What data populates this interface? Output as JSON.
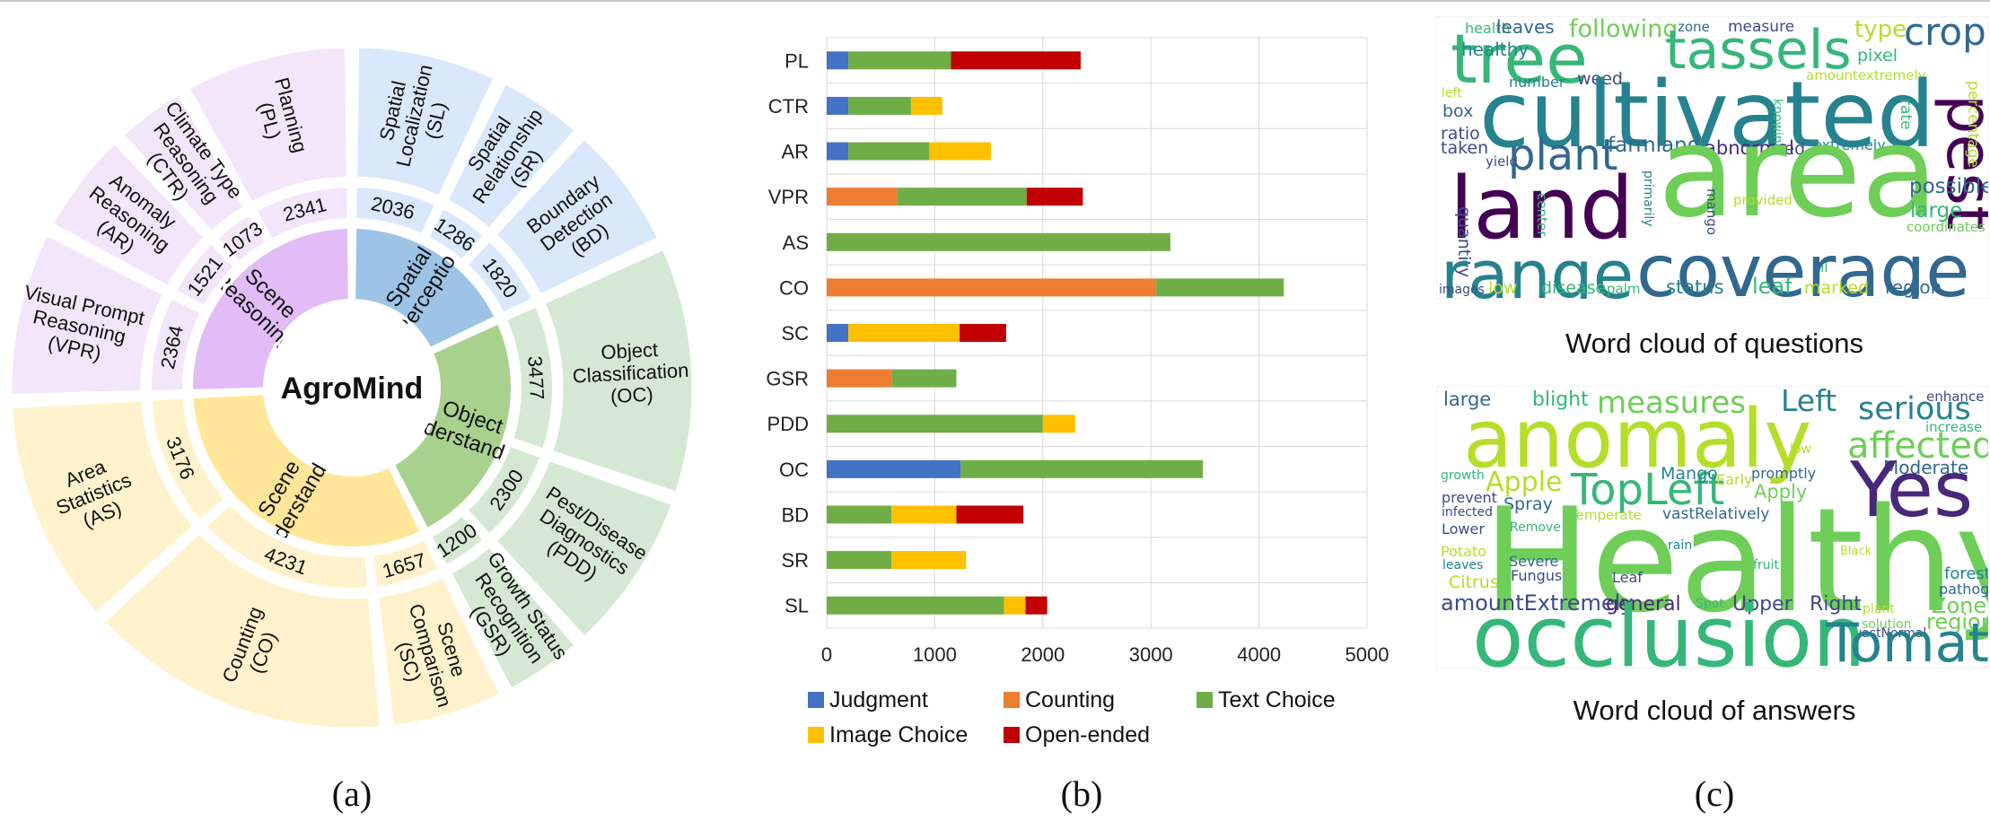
{
  "panel_labels": [
    "(a)",
    "(b)",
    "(c)"
  ],
  "colors": {
    "judgment": "#4472c4",
    "counting": "#ed7d31",
    "text_choice": "#70ad47",
    "image_choice": "#ffc000",
    "open_ended": "#c00000"
  },
  "chart_data": [
    {
      "type": "sunburst",
      "title": "",
      "center_label": "AgroMind",
      "groups": [
        {
          "name": "Spatial Perception",
          "inner_color": "#9dc3e6",
          "outer_color": "#dae8fc",
          "tasks": [
            {
              "label": "Spatial Localization (SL)",
              "count": 2036
            },
            {
              "label": "Spatial Relationship (SR)",
              "count": 1286
            },
            {
              "label": "Boundary Detection (BD)",
              "count": 1820
            }
          ]
        },
        {
          "name": "Object Understanding",
          "inner_color": "#a9d18e",
          "outer_color": "#d5e8d4",
          "tasks": [
            {
              "label": "Object Classification (OC)",
              "count": 3477
            },
            {
              "label": "Pest/Disease Diagnostics (PDD)",
              "count": 2300
            },
            {
              "label": "Growth Status Recognition (GSR)",
              "count": 1200
            }
          ]
        },
        {
          "name": "Scene Understanding",
          "inner_color": "#ffe699",
          "outer_color": "#fff2cc",
          "tasks": [
            {
              "label": "Scene Comparison (SC)",
              "count": 1657
            },
            {
              "label": "Counting (CO)",
              "count": 4231
            },
            {
              "label": "Area Statistics (AS)",
              "count": 3176
            }
          ]
        },
        {
          "name": "Scene Reasoning",
          "inner_color": "#e1bcf7",
          "outer_color": "#f3e6fb",
          "tasks": [
            {
              "label": "Visual Prompt Reasoning (VPR)",
              "count": 2364
            },
            {
              "label": "Anomaly Reasoning (AR)",
              "count": 1521
            },
            {
              "label": "Climate Type Reasoning (CTR)",
              "count": 1073
            },
            {
              "label": "Planning (PL)",
              "count": 2341
            }
          ]
        }
      ]
    },
    {
      "type": "bar",
      "orientation": "horizontal",
      "stacked": true,
      "categories": [
        "PL",
        "CTR",
        "AR",
        "VPR",
        "AS",
        "CO",
        "SC",
        "GSR",
        "PDD",
        "OC",
        "BD",
        "SR",
        "SL"
      ],
      "series": [
        {
          "name": "Judgment",
          "values": [
            200,
            200,
            200,
            0,
            0,
            0,
            200,
            0,
            0,
            1240,
            0,
            0,
            0
          ]
        },
        {
          "name": "Counting",
          "values": [
            0,
            0,
            0,
            650,
            0,
            3050,
            0,
            600,
            0,
            0,
            0,
            0,
            0
          ]
        },
        {
          "name": "Text Choice",
          "values": [
            950,
            580,
            750,
            1200,
            3180,
            1180,
            0,
            600,
            2000,
            2240,
            600,
            600,
            1640
          ]
        },
        {
          "name": "Image Choice",
          "values": [
            0,
            290,
            570,
            0,
            0,
            0,
            1030,
            0,
            300,
            0,
            600,
            690,
            200
          ]
        },
        {
          "name": "Open-ended",
          "values": [
            1200,
            0,
            0,
            520,
            0,
            0,
            430,
            0,
            0,
            0,
            620,
            0,
            200
          ]
        }
      ],
      "xlim": [
        0,
        5000
      ],
      "xticks": [
        "0",
        "1000",
        "2000",
        "3000",
        "4000",
        "5000"
      ],
      "grid": true,
      "legend_position": "bottom"
    }
  ],
  "wordclouds": {
    "questions": {
      "caption": "Word cloud of questions",
      "words": [
        {
          "text": "health",
          "color": "#35b779"
        },
        {
          "text": "leaves",
          "color": "#31688e"
        },
        {
          "text": "following",
          "color": "#6ece58"
        },
        {
          "text": "zone",
          "color": "#31688e"
        },
        {
          "text": "measure",
          "color": "#3e4989"
        },
        {
          "text": "type",
          "color": "#b5de2b"
        },
        {
          "text": "crop",
          "color": "#31688e"
        },
        {
          "text": "tree",
          "color": "#35b779"
        },
        {
          "text": "tassels",
          "color": "#35b779"
        },
        {
          "text": "healthy",
          "color": "#26828e"
        },
        {
          "text": "pixel",
          "color": "#35b779"
        },
        {
          "text": "number",
          "color": "#26828e"
        },
        {
          "text": "weed",
          "color": "#3e4989"
        },
        {
          "text": "amountextremely",
          "color": "#b5de2b"
        },
        {
          "text": "cultivated",
          "color": "#26828e"
        },
        {
          "text": "pest",
          "color": "#440154"
        },
        {
          "text": "left",
          "color": "#b5de2b"
        },
        {
          "text": "box",
          "color": "#31688e"
        },
        {
          "text": "ratio",
          "color": "#3e4989"
        },
        {
          "text": "taken",
          "color": "#3e4989"
        },
        {
          "text": "plant",
          "color": "#31688e"
        },
        {
          "text": "farmland",
          "color": "#31688e"
        },
        {
          "text": "abnormal",
          "color": "#482878"
        },
        {
          "text": "red",
          "color": "#3e4989"
        },
        {
          "text": "extremely",
          "color": "#26828e"
        },
        {
          "text": "knowing",
          "color": "#35b779"
        },
        {
          "text": "rate",
          "color": "#35b779"
        },
        {
          "text": "percentage",
          "color": "#b5de2b"
        },
        {
          "text": "yield",
          "color": "#3e4989"
        },
        {
          "text": "land",
          "color": "#440154"
        },
        {
          "text": "area",
          "color": "#6ece58"
        },
        {
          "text": "possible",
          "color": "#31688e"
        },
        {
          "text": "large",
          "color": "#35b779"
        },
        {
          "text": "coordinates",
          "color": "#6ece58"
        },
        {
          "text": "quantity",
          "color": "#3e4989"
        },
        {
          "text": "center",
          "color": "#35b779"
        },
        {
          "text": "primarily",
          "color": "#26828e"
        },
        {
          "text": "mango",
          "color": "#3e4989"
        },
        {
          "text": "provided",
          "color": "#b5de2b"
        },
        {
          "text": "oil",
          "color": "#35b779"
        },
        {
          "text": "range",
          "color": "#26828e"
        },
        {
          "text": "coverage",
          "color": "#31688e"
        },
        {
          "text": "images",
          "color": "#3e4989"
        },
        {
          "text": "low",
          "color": "#b5de2b"
        },
        {
          "text": "disease",
          "color": "#35b779"
        },
        {
          "text": "palm",
          "color": "#35b779"
        },
        {
          "text": "status",
          "color": "#26828e"
        },
        {
          "text": "leaf",
          "color": "#35b779"
        },
        {
          "text": "marked",
          "color": "#b5de2b"
        },
        {
          "text": "region",
          "color": "#31688e"
        }
      ]
    },
    "answers": {
      "caption": "Word cloud of answers",
      "words": [
        {
          "text": "large",
          "color": "#31688e"
        },
        {
          "text": "blight",
          "color": "#35b779"
        },
        {
          "text": "measures",
          "color": "#6ece58"
        },
        {
          "text": "Left",
          "color": "#26828e"
        },
        {
          "text": "serious",
          "color": "#26828e"
        },
        {
          "text": "enhance",
          "color": "#3e4989"
        },
        {
          "text": "increase",
          "color": "#35b779"
        },
        {
          "text": "anomaly",
          "color": "#b5de2b"
        },
        {
          "text": "affected",
          "color": "#6ece58"
        },
        {
          "text": "low",
          "color": "#b5de2b"
        },
        {
          "text": "Moderate",
          "color": "#31688e"
        },
        {
          "text": "Yes",
          "color": "#482878"
        },
        {
          "text": "growth",
          "color": "#35b779"
        },
        {
          "text": "Apple",
          "color": "#b5de2b"
        },
        {
          "text": "TopLeft",
          "color": "#35b779"
        },
        {
          "text": "Mango",
          "color": "#26828e"
        },
        {
          "text": "promptly",
          "color": "#31688e"
        },
        {
          "text": "Early",
          "color": "#b5de2b"
        },
        {
          "text": "Apply",
          "color": "#6ece58"
        },
        {
          "text": "prevent",
          "color": "#3e4989"
        },
        {
          "text": "infected",
          "color": "#3e4989"
        },
        {
          "text": "Spray",
          "color": "#31688e"
        },
        {
          "text": "Temperate",
          "color": "#b5de2b"
        },
        {
          "text": "vastRelatively",
          "color": "#31688e"
        },
        {
          "text": "Lower",
          "color": "#3e4989"
        },
        {
          "text": "Remove",
          "color": "#35b779"
        },
        {
          "text": "Healthy",
          "color": "#6ece58"
        },
        {
          "text": "rain",
          "color": "#26828e"
        },
        {
          "text": "Black",
          "color": "#b5de2b"
        },
        {
          "text": "Potato",
          "color": "#b5de2b"
        },
        {
          "text": "leaves",
          "color": "#26828e"
        },
        {
          "text": "Severe",
          "color": "#31688e"
        },
        {
          "text": "Fungus",
          "color": "#3e4989"
        },
        {
          "text": "fruit",
          "color": "#35b779"
        },
        {
          "text": "Leaf",
          "color": "#3e4989"
        },
        {
          "text": "forest",
          "color": "#26828e"
        },
        {
          "text": "pathogen",
          "color": "#31688e"
        },
        {
          "text": "Citrus",
          "color": "#b5de2b"
        },
        {
          "text": "Zone",
          "color": "#6ece58"
        },
        {
          "text": "amountExtremely",
          "color": "#3e4989"
        },
        {
          "text": "general",
          "color": "#482878"
        },
        {
          "text": "Spot",
          "color": "#35b779"
        },
        {
          "text": "Upper",
          "color": "#3e4989"
        },
        {
          "text": "Right",
          "color": "#3e4989"
        },
        {
          "text": "plant",
          "color": "#b5de2b"
        },
        {
          "text": "solution",
          "color": "#6ece58"
        },
        {
          "text": "region",
          "color": "#6ece58"
        },
        {
          "text": "vastNormal",
          "color": "#3e4989"
        },
        {
          "text": "occlusion",
          "color": "#35b779"
        },
        {
          "text": "Tomato",
          "color": "#26828e"
        }
      ]
    }
  }
}
